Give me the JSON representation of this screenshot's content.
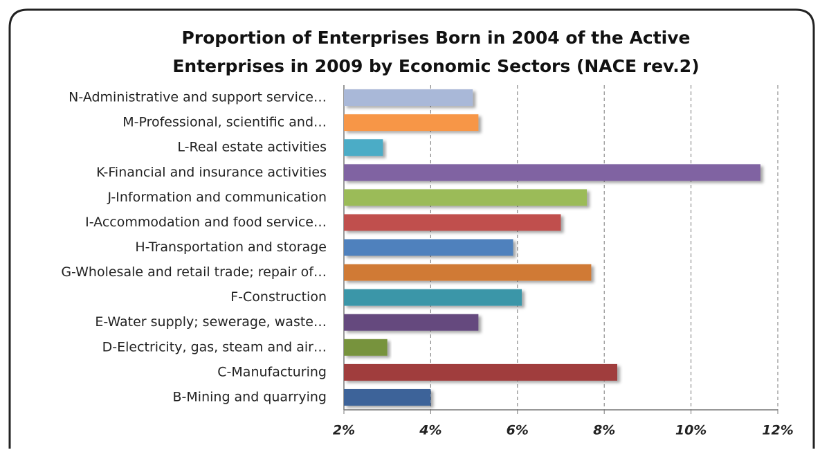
{
  "chart_data": {
    "type": "hbar",
    "title": [
      "Proportion of Enterprises Born in 2004 of the Active",
      "Enterprises in 2009 by Economic Sectors (NACE rev.2)"
    ],
    "categories": [
      "N-Administrative and support service…",
      "M-Professional, scientific and…",
      "L-Real estate activities",
      "K-Financial and insurance activities",
      "J-Information and communication",
      "I-Accommodation and food service…",
      "H-Transportation and storage",
      "G-Wholesale and retail trade; repair of…",
      "F-Construction",
      "E-Water supply; sewerage, waste…",
      "D-Electricity, gas, steam and air…",
      "C-Manufacturing",
      "B-Mining and quarrying"
    ],
    "values": [
      4.97,
      5.1,
      2.9,
      11.6,
      7.6,
      7.0,
      5.9,
      7.7,
      6.1,
      5.1,
      3.0,
      8.3,
      4.0
    ],
    "colors": [
      "#a9b8d8",
      "#f79646",
      "#4bacc6",
      "#8064a2",
      "#9bbb59",
      "#c0504d",
      "#4f81bd",
      "#d07a35",
      "#3a96a8",
      "#65497e",
      "#77933c",
      "#a03c3c",
      "#3c6499"
    ],
    "xlim": [
      2,
      12
    ],
    "xticks": [
      {
        "value": 2,
        "label": "2%"
      },
      {
        "value": 4,
        "label": "4%"
      },
      {
        "value": 6,
        "label": "6%"
      },
      {
        "value": 8,
        "label": "8%"
      },
      {
        "value": 10,
        "label": "10%"
      },
      {
        "value": 12,
        "label": "12%"
      }
    ],
    "grid": true
  }
}
